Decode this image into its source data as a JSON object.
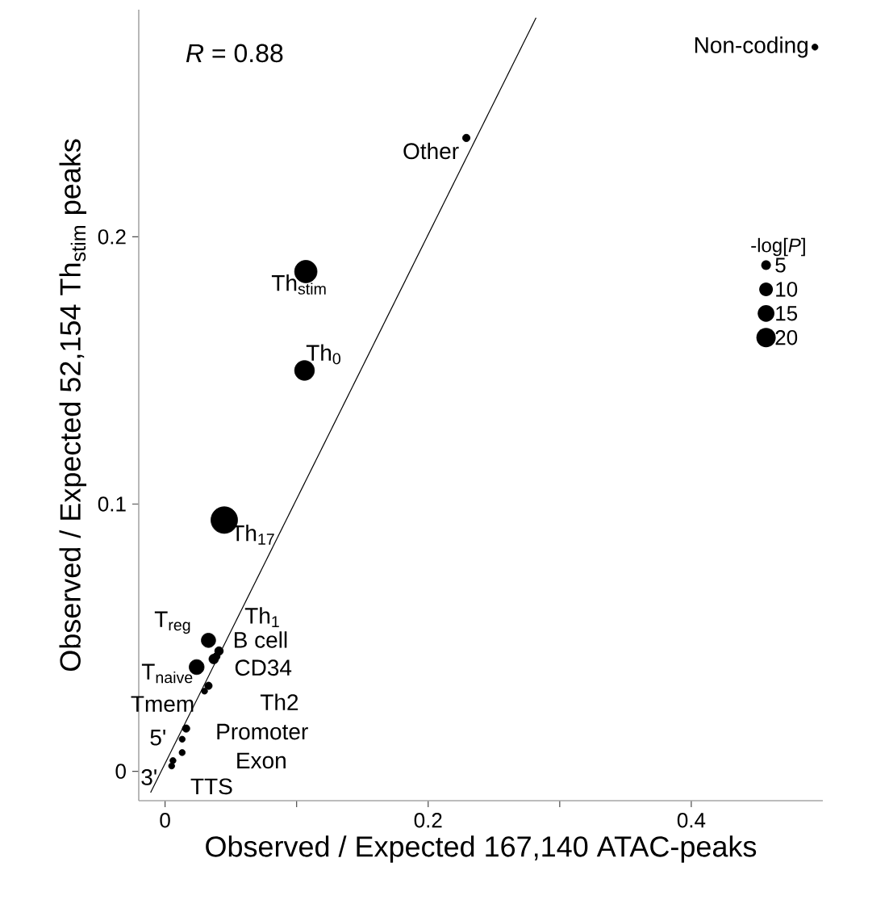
{
  "chart_data": {
    "type": "bubble",
    "xlabel": "Observed / Expected 167,140 ATAC-peaks",
    "ylabel": "Observed / Expected 52,154 Th$_{stim}$ peaks",
    "legend_title": "-log[*P*]",
    "size_legend": [
      5,
      10,
      15,
      20
    ],
    "xlim": [
      -0.02,
      0.5
    ],
    "ylim": [
      -0.011,
      0.285
    ],
    "xticks": [
      0,
      {
        "value": 0.1,
        "label": null
      },
      0.2,
      {
        "value": 0.3,
        "label": null
      },
      0.4
    ],
    "yticks": [
      0,
      0.1,
      0.2
    ],
    "series": [
      {
        "color": "#000000",
        "x": [
          0.494,
          0.229,
          0.107,
          0.106,
          0.045,
          0.033,
          0.041,
          0.037,
          0.039,
          0.024,
          0.03,
          0.033,
          0.016,
          0.013,
          0.013,
          0.005,
          0.006
        ],
        "values": [
          0.271,
          0.237,
          0.187,
          0.15,
          0.094,
          0.049,
          0.045,
          0.042,
          0.043,
          0.039,
          0.03,
          0.032,
          0.016,
          0.012,
          0.007,
          0.002,
          0.004
        ],
        "sizes": [
          2,
          3,
          27,
          21,
          38,
          11,
          4,
          5,
          3,
          12,
          2,
          3,
          3,
          2,
          2,
          2,
          2
        ]
      },
      {
        "type": "line",
        "color": "#000000",
        "x": [
          -0.011,
          0.282
        ],
        "values": [
          -0.008,
          0.282
        ]
      }
    ],
    "annotations": [
      "*R* = 0.88",
      {
        "text": "Non-coding",
        "x": 0.494,
        "y": 0.271
      },
      {
        "text": "Other",
        "x": 0.229,
        "y": 0.237
      },
      {
        "text": "Th$_{stim}$",
        "x": 0.107,
        "y": 0.187
      },
      {
        "text": "Th$_{0}$",
        "x": 0.106,
        "y": 0.15
      },
      {
        "text": "Th$_{17}$",
        "x": 0.045,
        "y": 0.094
      },
      {
        "text": "T$_{reg}$",
        "x": 0.033,
        "y": 0.049
      },
      {
        "text": "Th$_{1}$",
        "x": 0.041,
        "y": 0.045
      },
      {
        "text": "B cell",
        "x": 0.037,
        "y": 0.042
      },
      {
        "text": "CD34",
        "x": 0.039,
        "y": 0.043
      },
      {
        "text": "T$_{naive}$",
        "x": 0.024,
        "y": 0.039
      },
      {
        "text": "Tmem",
        "x": 0.03,
        "y": 0.03
      },
      {
        "text": "Th2",
        "x": 0.033,
        "y": 0.032
      },
      {
        "text": "Promoter",
        "x": 0.016,
        "y": 0.016
      },
      {
        "text": "5'",
        "x": 0.013,
        "y": 0.012
      },
      {
        "text": "Exon",
        "x": 0.013,
        "y": 0.007
      },
      {
        "text": "3'",
        "x": 0.005,
        "y": 0.002
      },
      {
        "text": "TTS",
        "x": 0.006,
        "y": 0.004
      }
    ]
  }
}
